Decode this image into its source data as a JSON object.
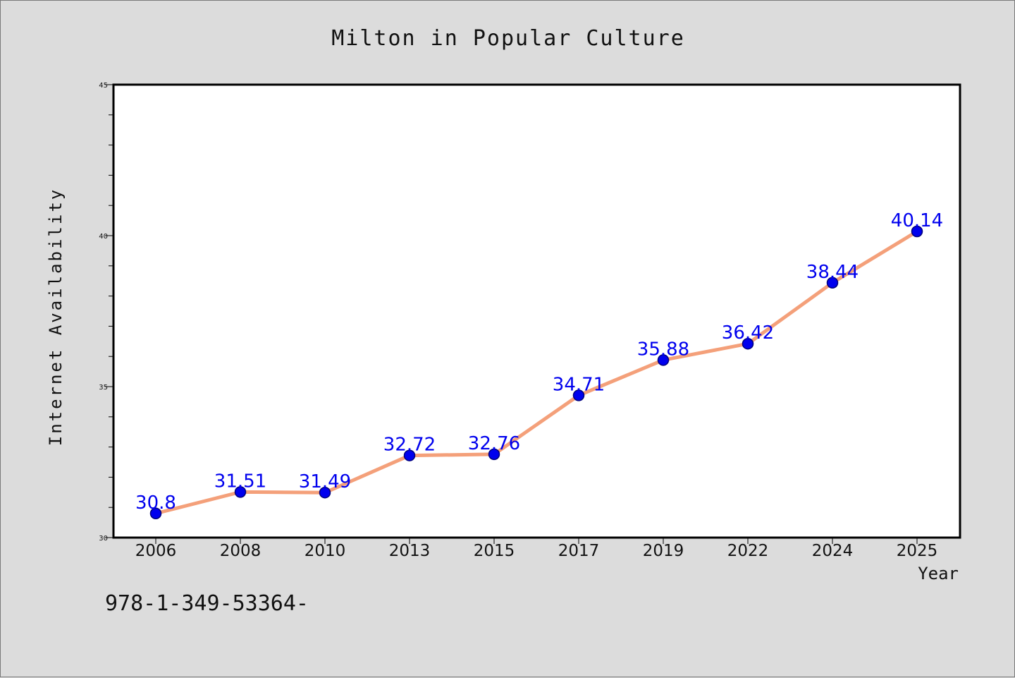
{
  "chart_data": {
    "type": "line",
    "title": "Milton in Popular Culture",
    "xlabel": "Year",
    "ylabel": "Internet Availability",
    "categories": [
      "2006",
      "2008",
      "2010",
      "2013",
      "2015",
      "2017",
      "2019",
      "2022",
      "2024",
      "2025"
    ],
    "series": [
      {
        "values": [
          30.8,
          31.51,
          31.49,
          32.72,
          32.76,
          34.71,
          35.88,
          36.42,
          38.44,
          40.14
        ]
      }
    ],
    "data_labels": [
      "30.8",
      "31.51",
      "31.49",
      "32.72",
      "32.76",
      "34.71",
      "35.88",
      "36.42",
      "38.44",
      "40.14"
    ],
    "ylim": [
      30,
      45
    ],
    "yticks": [
      30,
      35,
      40,
      45
    ],
    "line_color": "#f4a07a",
    "marker_color": "#0000ee",
    "label_color": "#0000ee",
    "grid": false,
    "legend": "none"
  },
  "footer_text": "978-1-349-53364-"
}
